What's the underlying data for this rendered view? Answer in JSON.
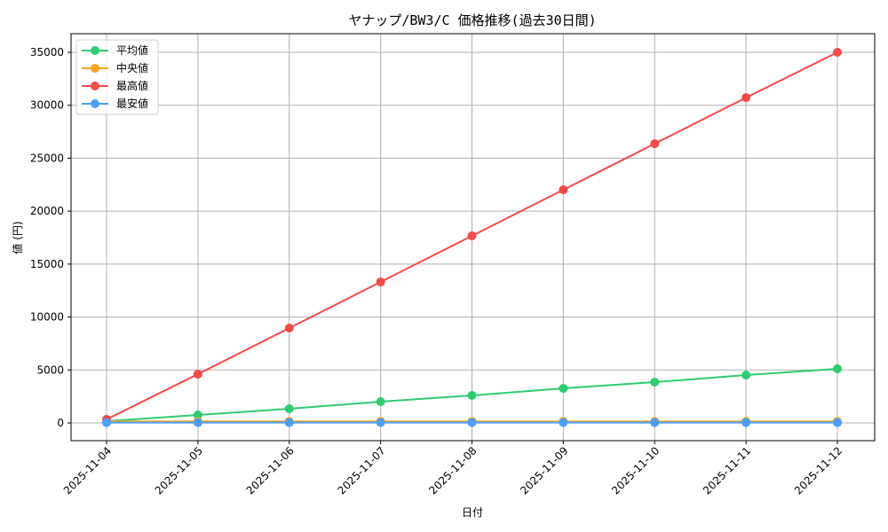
{
  "chart_data": {
    "type": "line",
    "title": "ヤナップ/BW3/C 価格推移(過去30日間)",
    "xlabel": "日付",
    "ylabel": "値 (円)",
    "x": [
      "2025-11-04",
      "2025-11-05",
      "2025-11-06",
      "2025-11-07",
      "2025-11-08",
      "2025-11-09",
      "2025-11-10",
      "2025-11-11",
      "2025-11-12"
    ],
    "ylim": [
      -1500,
      36700
    ],
    "yticks": [
      0,
      5000,
      10000,
      15000,
      20000,
      25000,
      30000,
      35000
    ],
    "ytick_labels": [
      "0",
      "5000",
      "10000",
      "15000",
      "20000",
      "25000",
      "30000",
      "35000"
    ],
    "grid": true,
    "legend_position": "upper left",
    "series": [
      {
        "name": "平均値",
        "color": "#2ecc71",
        "values": [
          170,
          750,
          1340,
          2010,
          2600,
          3270,
          3850,
          4520,
          5110
        ]
      },
      {
        "name": "中央値",
        "color": "#f5a623",
        "values": [
          150,
          150,
          150,
          150,
          150,
          150,
          150,
          150,
          150
        ]
      },
      {
        "name": "最高値",
        "color": "#f44b4b",
        "values": [
          340,
          4610,
          8960,
          13310,
          17670,
          22020,
          26370,
          30720,
          35000
        ]
      },
      {
        "name": "最安値",
        "color": "#4c9ef8",
        "values": [
          30,
          30,
          30,
          30,
          30,
          30,
          30,
          30,
          30
        ]
      }
    ]
  }
}
